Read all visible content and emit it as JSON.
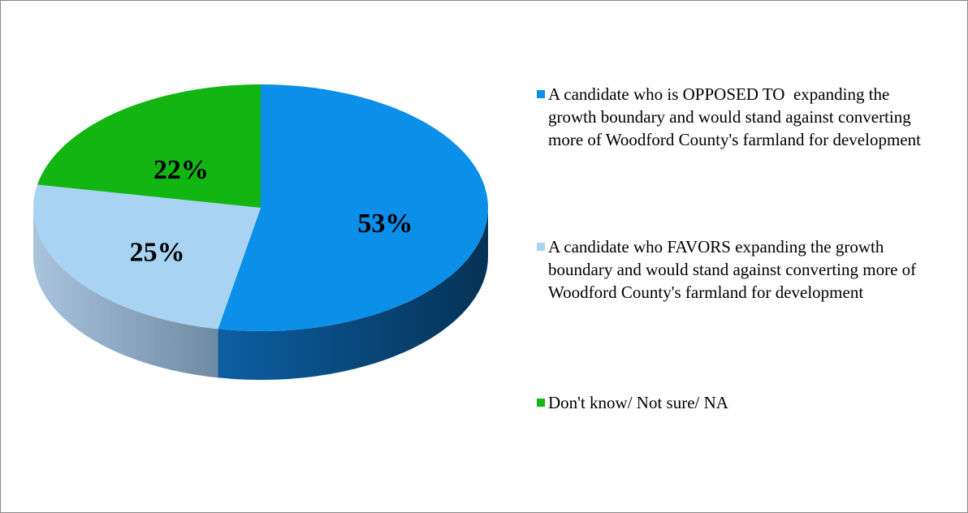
{
  "chart_data": {
    "type": "pie3d",
    "categories": [
      "A candidate who is OPPOSED TO  expanding the growth boundary and would stand against converting more of Woodford County's farmland for development",
      "A candidate who FAVORS expanding the growth boundary and would stand against converting more of Woodford County's farmland for development",
      "Don't know/ Not sure/ NA"
    ],
    "values": [
      53,
      25,
      22
    ],
    "value_labels": [
      "53%",
      "25%",
      "22%"
    ],
    "colors": [
      "#0b8fe8",
      "#a8d3f2",
      "#13b513"
    ],
    "legend": "right"
  }
}
